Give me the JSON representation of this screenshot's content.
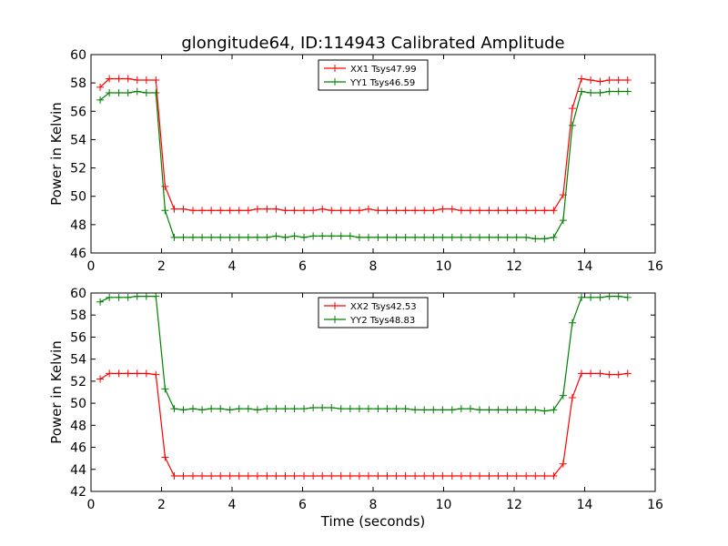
{
  "figure_title": "glongitude64, ID:114943 Calibrated Amplitude",
  "x_axis_label": "Time (seconds)",
  "colors": {
    "XX": "#ff0000",
    "YY": "#008000"
  },
  "chart_data": [
    {
      "type": "line",
      "xlabel": "",
      "ylabel": "Power in Kelvin",
      "xlim": [
        0,
        16
      ],
      "ylim": [
        46,
        60
      ],
      "xticks": [
        "0",
        "2",
        "4",
        "6",
        "8",
        "10",
        "12",
        "14",
        "16"
      ],
      "yticks": [
        "46",
        "48",
        "50",
        "52",
        "54",
        "56",
        "58",
        "60"
      ],
      "grid": false,
      "legend_position": "top-center",
      "x": [
        0.26,
        0.52,
        0.79,
        1.05,
        1.31,
        1.57,
        1.84,
        2.1,
        2.36,
        2.62,
        2.89,
        3.15,
        3.41,
        3.67,
        3.94,
        4.2,
        4.46,
        4.72,
        4.99,
        5.25,
        5.51,
        5.77,
        6.04,
        6.3,
        6.56,
        6.82,
        7.09,
        7.35,
        7.61,
        7.87,
        8.14,
        8.4,
        8.66,
        8.92,
        9.19,
        9.45,
        9.71,
        9.97,
        10.24,
        10.5,
        10.76,
        11.02,
        11.29,
        11.55,
        11.81,
        12.07,
        12.34,
        12.6,
        12.86,
        13.12,
        13.39,
        13.65,
        13.91,
        14.17,
        14.44,
        14.7,
        14.96,
        15.22
      ],
      "series": [
        {
          "name": "XX1 Tsys47.99",
          "color_key": "XX",
          "values": [
            57.7,
            58.3,
            58.3,
            58.3,
            58.2,
            58.2,
            58.2,
            50.7,
            49.1,
            49.1,
            49.0,
            49.0,
            49.0,
            49.0,
            49.0,
            49.0,
            49.0,
            49.1,
            49.1,
            49.1,
            49.0,
            49.0,
            49.0,
            49.0,
            49.1,
            49.0,
            49.0,
            49.0,
            49.0,
            49.1,
            49.0,
            49.0,
            49.0,
            49.0,
            49.0,
            49.0,
            49.0,
            49.1,
            49.1,
            49.0,
            49.0,
            49.0,
            49.0,
            49.0,
            49.0,
            49.0,
            49.0,
            49.0,
            49.0,
            49.0,
            50.1,
            56.2,
            58.3,
            58.2,
            58.1,
            58.2,
            58.2,
            58.2
          ]
        },
        {
          "name": "YY1 Tsys46.59",
          "color_key": "YY",
          "values": [
            56.8,
            57.3,
            57.3,
            57.3,
            57.4,
            57.3,
            57.3,
            49.0,
            47.1,
            47.1,
            47.1,
            47.1,
            47.1,
            47.1,
            47.1,
            47.1,
            47.1,
            47.1,
            47.1,
            47.2,
            47.1,
            47.2,
            47.1,
            47.2,
            47.2,
            47.2,
            47.2,
            47.2,
            47.1,
            47.1,
            47.1,
            47.1,
            47.1,
            47.1,
            47.1,
            47.1,
            47.1,
            47.1,
            47.1,
            47.1,
            47.1,
            47.1,
            47.1,
            47.1,
            47.1,
            47.1,
            47.1,
            47.0,
            47.0,
            47.1,
            48.3,
            55.0,
            57.4,
            57.3,
            57.3,
            57.4,
            57.4,
            57.4
          ]
        }
      ]
    },
    {
      "type": "line",
      "xlabel": "Time (seconds)",
      "ylabel": "Power in Kelvin",
      "xlim": [
        0,
        16
      ],
      "ylim": [
        42,
        60
      ],
      "xticks": [
        "0",
        "2",
        "4",
        "6",
        "8",
        "10",
        "12",
        "14",
        "16"
      ],
      "yticks": [
        "42",
        "44",
        "46",
        "48",
        "50",
        "52",
        "54",
        "56",
        "58",
        "60"
      ],
      "grid": false,
      "legend_position": "top-center",
      "x": [
        0.26,
        0.52,
        0.79,
        1.05,
        1.31,
        1.57,
        1.84,
        2.1,
        2.36,
        2.62,
        2.89,
        3.15,
        3.41,
        3.67,
        3.94,
        4.2,
        4.46,
        4.72,
        4.99,
        5.25,
        5.51,
        5.77,
        6.04,
        6.3,
        6.56,
        6.82,
        7.09,
        7.35,
        7.61,
        7.87,
        8.14,
        8.4,
        8.66,
        8.92,
        9.19,
        9.45,
        9.71,
        9.97,
        10.24,
        10.5,
        10.76,
        11.02,
        11.29,
        11.55,
        11.81,
        12.07,
        12.34,
        12.6,
        12.86,
        13.12,
        13.39,
        13.65,
        13.91,
        14.17,
        14.44,
        14.7,
        14.96,
        15.22
      ],
      "series": [
        {
          "name": "XX2 Tsys42.53",
          "color_key": "XX",
          "values": [
            52.2,
            52.7,
            52.7,
            52.7,
            52.7,
            52.7,
            52.6,
            45.1,
            43.4,
            43.4,
            43.4,
            43.4,
            43.4,
            43.4,
            43.4,
            43.4,
            43.4,
            43.4,
            43.4,
            43.4,
            43.4,
            43.4,
            43.4,
            43.4,
            43.4,
            43.4,
            43.4,
            43.4,
            43.4,
            43.4,
            43.4,
            43.4,
            43.4,
            43.4,
            43.4,
            43.4,
            43.4,
            43.4,
            43.4,
            43.4,
            43.4,
            43.4,
            43.4,
            43.4,
            43.4,
            43.4,
            43.4,
            43.4,
            43.4,
            43.4,
            44.5,
            50.5,
            52.7,
            52.7,
            52.7,
            52.6,
            52.6,
            52.7
          ]
        },
        {
          "name": "YY2 Tsys48.83",
          "color_key": "YY",
          "values": [
            59.2,
            59.6,
            59.6,
            59.6,
            59.7,
            59.7,
            59.7,
            51.3,
            49.5,
            49.4,
            49.5,
            49.4,
            49.5,
            49.5,
            49.4,
            49.5,
            49.5,
            49.4,
            49.5,
            49.5,
            49.5,
            49.5,
            49.5,
            49.6,
            49.6,
            49.6,
            49.5,
            49.5,
            49.5,
            49.5,
            49.5,
            49.5,
            49.5,
            49.5,
            49.4,
            49.4,
            49.4,
            49.4,
            49.4,
            49.5,
            49.5,
            49.4,
            49.4,
            49.4,
            49.4,
            49.4,
            49.4,
            49.4,
            49.3,
            49.4,
            50.7,
            57.3,
            59.6,
            59.6,
            59.6,
            59.7,
            59.7,
            59.6
          ]
        }
      ]
    }
  ]
}
